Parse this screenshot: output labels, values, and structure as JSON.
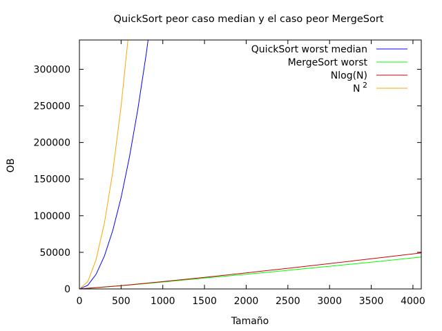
{
  "chart_data": {
    "type": "line",
    "title": "QuickSort peor caso median y el caso peor MergeSort",
    "xlabel": "Tamaño",
    "ylabel": "OB",
    "xlim": [
      0,
      4100
    ],
    "ylim": [
      0,
      340000
    ],
    "x_ticks": [
      0,
      500,
      1000,
      1500,
      2000,
      2500,
      3000,
      3500,
      4000
    ],
    "y_ticks": [
      0,
      50000,
      100000,
      150000,
      200000,
      250000,
      300000
    ],
    "grid": false,
    "legend_position": "top-right",
    "series": [
      {
        "name": "QuickSort worst median",
        "color": "#0000ff",
        "x": [
          0,
          100,
          200,
          300,
          400,
          500,
          600,
          700,
          800,
          900
        ],
        "y": [
          0,
          5000,
          20000,
          45000,
          80000,
          125000,
          180000,
          245000,
          320000,
          405000
        ]
      },
      {
        "name": "MergeSort worst",
        "color": "#00ff00",
        "x": [
          0,
          500,
          1000,
          1500,
          2000,
          2500,
          3000,
          3500,
          4100
        ],
        "y": [
          0,
          4300,
          9400,
          14800,
          20000,
          25400,
          31000,
          36500,
          43500
        ]
      },
      {
        "name": "Nlog(N)",
        "color": "#cc0000",
        "x": [
          0,
          500,
          1000,
          1500,
          2000,
          2500,
          3000,
          3500,
          4100
        ],
        "y": [
          0,
          4500,
          10000,
          15800,
          21900,
          28200,
          34700,
          41200,
          49200
        ]
      },
      {
        "name": "N",
        "superscript": "2",
        "color": "#ffa500",
        "x": [
          0,
          100,
          200,
          300,
          400,
          500,
          600,
          700
        ],
        "y": [
          0,
          10000,
          40000,
          90000,
          160000,
          250000,
          360000,
          490000
        ]
      }
    ]
  }
}
